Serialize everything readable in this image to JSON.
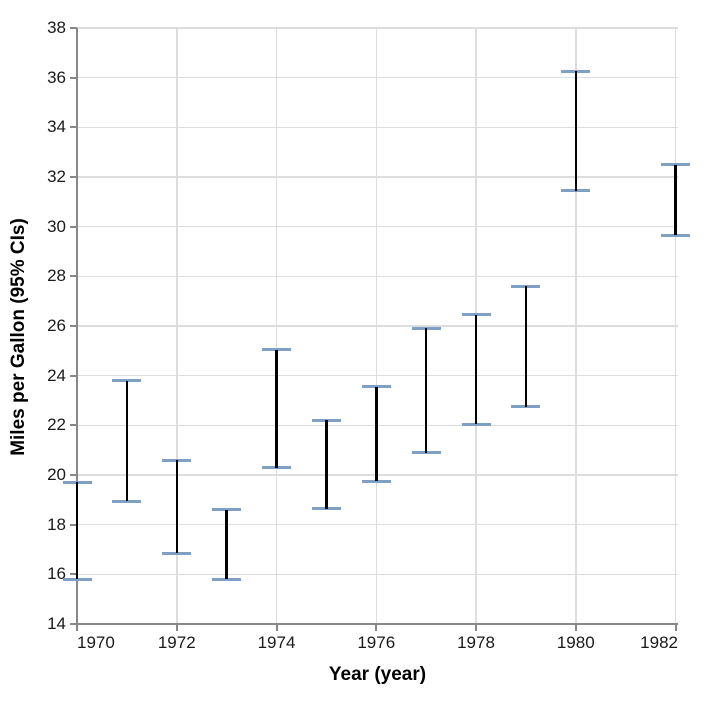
{
  "figure": {
    "background": "#ffffff",
    "grid_color": "#dddddd",
    "axis_color": "#888888",
    "label_color": "#1a1a1a",
    "title_color": "#000000",
    "rule_color": "#000000",
    "cap_color": "#7fa0c5"
  },
  "chart_data": {
    "type": "errorbar",
    "title": "",
    "xlabel": "Year (year)",
    "ylabel": "Miles per Gallon (95% CIs)",
    "legend": "none",
    "grid": "on",
    "xlim": [
      1970,
      1982.05
    ],
    "ylim": [
      14,
      38
    ],
    "x_ticks": [
      1970,
      1972,
      1974,
      1976,
      1978,
      1980,
      1982
    ],
    "y_ticks": [
      14,
      16,
      18,
      20,
      22,
      24,
      26,
      28,
      30,
      32,
      34,
      36,
      38
    ],
    "series": [
      {
        "name": "Miles per Gallon 95% CI",
        "points": [
          {
            "year": 1970,
            "ci_low": 15.8,
            "ci_high": 19.7
          },
          {
            "year": 1971,
            "ci_low": 18.95,
            "ci_high": 23.8
          },
          {
            "year": 1972,
            "ci_low": 16.85,
            "ci_high": 20.6
          },
          {
            "year": 1973,
            "ci_low": 15.8,
            "ci_high": 18.6
          },
          {
            "year": 1974,
            "ci_low": 20.3,
            "ci_high": 25.05
          },
          {
            "year": 1975,
            "ci_low": 18.65,
            "ci_high": 22.2
          },
          {
            "year": 1976,
            "ci_low": 19.75,
            "ci_high": 23.55
          },
          {
            "year": 1977,
            "ci_low": 20.9,
            "ci_high": 25.9
          },
          {
            "year": 1978,
            "ci_low": 22.05,
            "ci_high": 26.45
          },
          {
            "year": 1979,
            "ci_low": 22.75,
            "ci_high": 27.6
          },
          {
            "year": 1980,
            "ci_low": 31.45,
            "ci_high": 36.25
          },
          {
            "year": 1982,
            "ci_low": 29.65,
            "ci_high": 32.5
          }
        ]
      }
    ]
  }
}
